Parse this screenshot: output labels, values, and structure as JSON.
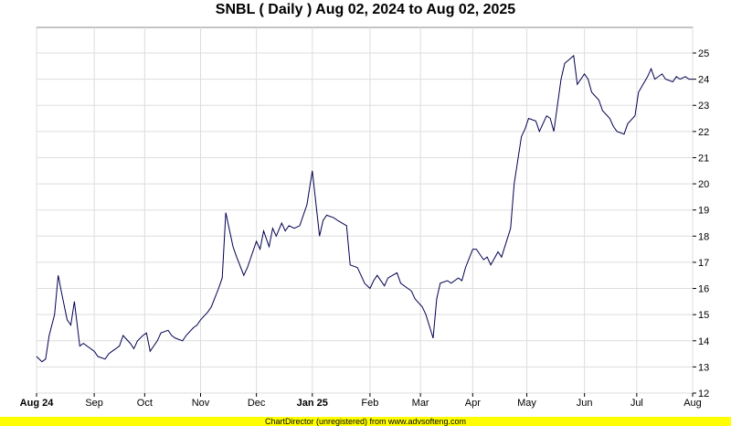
{
  "chart_data": {
    "type": "line",
    "title": "SNBL ( Daily ) Aug 02, 2024 to Aug 02, 2025",
    "xlabel": "",
    "ylabel": "",
    "ylim": [
      12,
      25.5
    ],
    "y_ticks": [
      12,
      13,
      14,
      15,
      16,
      17,
      18,
      19,
      20,
      21,
      22,
      23,
      24,
      25
    ],
    "y_axis_side": "right",
    "grid": true,
    "line_color": "#000050",
    "x_ticks": [
      {
        "date": "2024-08-02",
        "label": "Aug 24",
        "bold": true
      },
      {
        "date": "2024-09-03",
        "label": "Sep",
        "bold": false
      },
      {
        "date": "2024-10-01",
        "label": "Oct",
        "bold": false
      },
      {
        "date": "2024-11-01",
        "label": "Nov",
        "bold": false
      },
      {
        "date": "2024-12-02",
        "label": "Dec",
        "bold": false
      },
      {
        "date": "2025-01-02",
        "label": "Jan 25",
        "bold": true
      },
      {
        "date": "2025-02-03",
        "label": "Feb",
        "bold": false
      },
      {
        "date": "2025-03-03",
        "label": "Mar",
        "bold": false
      },
      {
        "date": "2025-04-01",
        "label": "Apr",
        "bold": false
      },
      {
        "date": "2025-05-01",
        "label": "May",
        "bold": false
      },
      {
        "date": "2025-06-02",
        "label": "Jun",
        "bold": false
      },
      {
        "date": "2025-07-01",
        "label": "Jul",
        "bold": false
      },
      {
        "date": "2025-08-01",
        "label": "Aug",
        "bold": false
      }
    ],
    "x": [
      "2024-08-02",
      "2024-08-05",
      "2024-08-07",
      "2024-08-09",
      "2024-08-12",
      "2024-08-14",
      "2024-08-16",
      "2024-08-19",
      "2024-08-21",
      "2024-08-23",
      "2024-08-26",
      "2024-08-28",
      "2024-08-30",
      "2024-09-03",
      "2024-09-05",
      "2024-09-09",
      "2024-09-11",
      "2024-09-13",
      "2024-09-17",
      "2024-09-19",
      "2024-09-23",
      "2024-09-25",
      "2024-09-27",
      "2024-09-30",
      "2024-10-02",
      "2024-10-04",
      "2024-10-08",
      "2024-10-10",
      "2024-10-14",
      "2024-10-16",
      "2024-10-18",
      "2024-10-22",
      "2024-10-24",
      "2024-10-28",
      "2024-10-30",
      "2024-11-01",
      "2024-11-05",
      "2024-11-07",
      "2024-11-11",
      "2024-11-13",
      "2024-11-15",
      "2024-11-19",
      "2024-11-21",
      "2024-11-25",
      "2024-11-27",
      "2024-12-02",
      "2024-12-04",
      "2024-12-06",
      "2024-12-09",
      "2024-12-11",
      "2024-12-13",
      "2024-12-16",
      "2024-12-18",
      "2024-12-20",
      "2024-12-23",
      "2024-12-26",
      "2024-12-30",
      "2025-01-02",
      "2025-01-06",
      "2025-01-08",
      "2025-01-10",
      "2025-01-14",
      "2025-01-16",
      "2025-01-21",
      "2025-01-23",
      "2025-01-27",
      "2025-01-29",
      "2025-01-31",
      "2025-02-03",
      "2025-02-05",
      "2025-02-07",
      "2025-02-11",
      "2025-02-13",
      "2025-02-18",
      "2025-02-20",
      "2025-02-24",
      "2025-02-26",
      "2025-02-28",
      "2025-03-04",
      "2025-03-06",
      "2025-03-10",
      "2025-03-12",
      "2025-03-14",
      "2025-03-18",
      "2025-03-20",
      "2025-03-24",
      "2025-03-26",
      "2025-03-28",
      "2025-04-01",
      "2025-04-03",
      "2025-04-07",
      "2025-04-09",
      "2025-04-11",
      "2025-04-15",
      "2025-04-17",
      "2025-04-22",
      "2025-04-24",
      "2025-04-28",
      "2025-04-30",
      "2025-05-02",
      "2025-05-06",
      "2025-05-08",
      "2025-05-12",
      "2025-05-14",
      "2025-05-16",
      "2025-05-20",
      "2025-05-22",
      "2025-05-27",
      "2025-05-29",
      "2025-06-02",
      "2025-06-04",
      "2025-06-06",
      "2025-06-10",
      "2025-06-12",
      "2025-06-16",
      "2025-06-18",
      "2025-06-20",
      "2025-06-24",
      "2025-06-26",
      "2025-06-30",
      "2025-07-02",
      "2025-07-07",
      "2025-07-09",
      "2025-07-11",
      "2025-07-15",
      "2025-07-17",
      "2025-07-21",
      "2025-07-23",
      "2025-07-25",
      "2025-07-28",
      "2025-07-30",
      "2025-08-01"
    ],
    "series": [
      {
        "values": [
          13.4,
          13.2,
          13.3,
          14.2,
          15.0,
          16.5,
          15.8,
          14.8,
          14.6,
          15.5,
          13.8,
          13.9,
          13.8,
          13.6,
          13.4,
          13.3,
          13.5,
          13.6,
          13.8,
          14.2,
          13.9,
          13.7,
          14.0,
          14.2,
          14.3,
          13.6,
          14.0,
          14.3,
          14.4,
          14.2,
          14.1,
          14.0,
          14.2,
          14.5,
          14.6,
          14.8,
          15.1,
          15.3,
          16.0,
          16.4,
          18.9,
          17.6,
          17.2,
          16.5,
          16.8,
          17.8,
          17.5,
          18.2,
          17.6,
          18.3,
          18.0,
          18.5,
          18.2,
          18.4,
          18.3,
          18.4,
          19.2,
          20.5,
          18.0,
          18.6,
          18.8,
          18.7,
          18.6,
          18.4,
          16.9,
          16.8,
          16.5,
          16.2,
          16.0,
          16.3,
          16.5,
          16.1,
          16.4,
          16.6,
          16.2,
          16.0,
          15.9,
          15.6,
          15.3,
          15.0,
          14.1,
          15.6,
          16.2,
          16.3,
          16.2,
          16.4,
          16.3,
          16.8,
          17.5,
          17.5,
          17.1,
          17.2,
          16.9,
          17.4,
          17.2,
          18.3,
          20.0,
          21.8,
          22.1,
          22.5,
          22.4,
          22.0,
          22.6,
          22.5,
          22.0,
          24.0,
          24.6,
          24.9,
          23.8,
          24.2,
          24.0,
          23.5,
          23.2,
          22.8,
          22.5,
          22.2,
          22.0,
          21.9,
          22.3,
          22.6,
          23.5,
          24.1,
          24.4,
          24.0,
          24.2,
          24.0,
          23.9,
          24.1,
          24.0,
          24.1,
          24.0,
          24.0
        ]
      }
    ]
  },
  "footer": {
    "text": "ChartDirector (unregistered) from www.advsofteng.com"
  }
}
